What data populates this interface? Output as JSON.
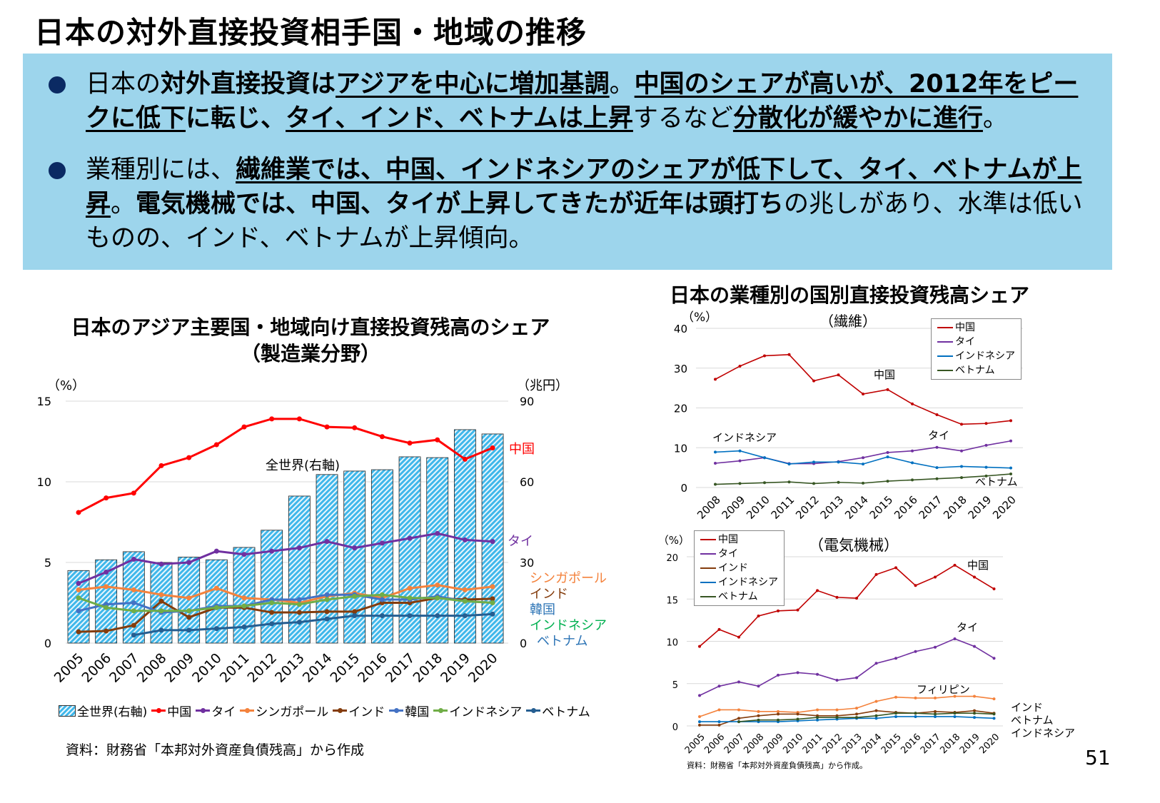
{
  "page_title": "日本の対外直接投資相手国・地域の推移",
  "bullets": [
    {
      "segments": [
        {
          "text": "日本の",
          "bold": false,
          "underline": false
        },
        {
          "text": "対外直接投資は",
          "bold": true,
          "underline": false
        },
        {
          "text": "アジアを中心に増加基調",
          "bold": true,
          "underline": true
        },
        {
          "text": "。",
          "bold": false,
          "underline": false
        },
        {
          "text": "中国のシェアが高いが、2012年をピークに低下",
          "bold": true,
          "underline": true
        },
        {
          "text": "に転じ、",
          "bold": true,
          "underline": false
        },
        {
          "text": "タイ、インド、ベトナムは上昇",
          "bold": true,
          "underline": true
        },
        {
          "text": "するなど",
          "bold": false,
          "underline": false
        },
        {
          "text": "分散化が緩やかに進行",
          "bold": true,
          "underline": true
        },
        {
          "text": "。",
          "bold": false,
          "underline": false
        }
      ]
    },
    {
      "segments": [
        {
          "text": "業種別には、",
          "bold": false,
          "underline": false
        },
        {
          "text": "繊維業では、中国、インドネシアのシェアが低下して、タイ、ベトナムが上昇",
          "bold": true,
          "underline": true
        },
        {
          "text": "。",
          "bold": false,
          "underline": false
        },
        {
          "text": "電気機械では、中国、タイが上昇してきたが近年は頭打ち",
          "bold": true,
          "underline": false
        },
        {
          "text": "の兆しがあり、水準は低いものの、インド、ベトナムが上昇傾向。",
          "bold": false,
          "underline": false
        }
      ]
    }
  ],
  "right_section_title": "日本の業種別の国別直接投資残高シェア",
  "source_left": "資料：財務省「本邦対外資産負債残高」から作成",
  "source_right": "資料：財務省「本邦対外資産負債残高」から作成。",
  "page_number": "51",
  "chart_data": [
    {
      "type": "bar+line",
      "title": "日本のアジア主要国・地域向け直接投資残高のシェア",
      "subtitle": "（製造業分野）",
      "ylabel": "（%）",
      "y2label": "（兆円）",
      "ylim": [
        0,
        15
      ],
      "y2lim": [
        0,
        90
      ],
      "yticks": [
        0,
        5,
        10,
        15
      ],
      "y2ticks": [
        0,
        30,
        60,
        90
      ],
      "grid": true,
      "legend": "bottom",
      "categories": [
        "2005",
        "2006",
        "2007",
        "2008",
        "2009",
        "2010",
        "2011",
        "2012",
        "2013",
        "2014",
        "2015",
        "2016",
        "2017",
        "2018",
        "2019",
        "2020"
      ],
      "bars": {
        "name": "全世界(右軸)",
        "label": "全世界(右軸)",
        "color": "#3fb7ea",
        "values": [
          27,
          31,
          34,
          30,
          32,
          31,
          35.6,
          42,
          54.7,
          62.7,
          64,
          64.5,
          69.3,
          69,
          79.4,
          77.8
        ]
      },
      "series": [
        {
          "name": "中国",
          "label": "中国",
          "color": "#ff0000",
          "values": [
            8.1,
            9.0,
            9.3,
            11.0,
            11.5,
            12.3,
            13.4,
            13.9,
            13.9,
            13.4,
            13.35,
            12.8,
            12.4,
            12.6,
            11.4,
            12.1
          ]
        },
        {
          "name": "タイ",
          "label": "タイ",
          "color": "#7030a0",
          "values": [
            3.7,
            4.4,
            5.2,
            4.9,
            5.0,
            5.7,
            5.5,
            5.7,
            5.9,
            6.3,
            5.9,
            6.2,
            6.5,
            6.8,
            6.4,
            6.3
          ]
        },
        {
          "name": "シンガポール",
          "label": "シンガポール",
          "color": "#f4823c",
          "values": [
            3.3,
            3.5,
            3.3,
            3.0,
            2.8,
            3.4,
            2.8,
            2.7,
            2.5,
            2.9,
            3.1,
            2.8,
            3.4,
            3.6,
            3.3,
            3.5
          ]
        },
        {
          "name": "インド",
          "label": "インド",
          "color": "#843c0c",
          "values": [
            0.7,
            0.75,
            1.1,
            2.6,
            1.6,
            2.2,
            2.2,
            1.9,
            1.9,
            1.95,
            1.95,
            2.5,
            2.5,
            2.8,
            2.7,
            2.75
          ]
        },
        {
          "name": "韓国",
          "label": "韓国",
          "color": "#4472c4",
          "values": [
            2.0,
            2.4,
            2.5,
            1.9,
            2.0,
            2.3,
            2.3,
            2.7,
            2.7,
            3.0,
            3.0,
            2.7,
            2.7,
            2.9,
            2.6,
            2.5
          ]
        },
        {
          "name": "インドネシア",
          "label": "インドネシア",
          "color": "#70ad47",
          "values": [
            2.8,
            2.2,
            2.0,
            2.0,
            2.0,
            2.2,
            2.3,
            2.5,
            2.4,
            2.7,
            2.9,
            3.0,
            2.8,
            2.8,
            2.6,
            2.5
          ]
        },
        {
          "name": "ベトナム",
          "label": "ベトナム",
          "color": "#255e91",
          "values": [
            null,
            null,
            0.5,
            0.8,
            0.8,
            0.9,
            1.0,
            1.2,
            1.3,
            1.5,
            1.7,
            1.7,
            1.7,
            1.7,
            1.7,
            1.8
          ]
        }
      ],
      "label_colors": {
        "中国": "#ff0000",
        "タイ": "#7030a0",
        "シンガポール": "#f4823c",
        "インド": "#843c0c",
        "韓国": "#2e75b6",
        "インドネシア": "#00b050",
        "ベトナム": "#2e75b6"
      }
    },
    {
      "type": "line",
      "title": "（繊維）",
      "ylabel": "（%）",
      "ylim": [
        0,
        40
      ],
      "yticks": [
        0,
        10,
        20,
        30,
        40
      ],
      "grid": true,
      "legend": "top-right",
      "categories": [
        "2008",
        "2009",
        "2010",
        "2011",
        "2012",
        "2013",
        "2014",
        "2015",
        "2016",
        "2017",
        "2018",
        "2019",
        "2020"
      ],
      "series": [
        {
          "name": "中国",
          "label": "中国",
          "color": "#c00000",
          "values": [
            27.2,
            30.5,
            33.1,
            33.4,
            26.8,
            28.3,
            23.5,
            24.6,
            21.0,
            18.3,
            15.9,
            16.1,
            16.8
          ]
        },
        {
          "name": "タイ",
          "label": "タイ",
          "color": "#7030a0",
          "values": [
            6.1,
            6.7,
            7.5,
            6.0,
            6.0,
            6.5,
            7.5,
            8.8,
            9.2,
            10.1,
            9.2,
            10.6,
            11.7
          ]
        },
        {
          "name": "インドネシア",
          "label": "インドネシア",
          "color": "#0070c0",
          "values": [
            8.9,
            9.2,
            7.5,
            5.9,
            6.4,
            6.4,
            5.9,
            7.7,
            6.2,
            5.0,
            5.3,
            5.1,
            4.9
          ]
        },
        {
          "name": "ベトナム",
          "label": "ベトナム",
          "color": "#375623",
          "values": [
            0.8,
            1.0,
            1.2,
            1.4,
            1.0,
            1.3,
            1.1,
            1.6,
            1.9,
            2.2,
            2.5,
            2.9,
            3.4
          ]
        }
      ]
    },
    {
      "type": "line",
      "title": "（電気機械）",
      "ylabel": "（%）",
      "ylim": [
        0,
        20
      ],
      "yticks": [
        0,
        5,
        10,
        15,
        20
      ],
      "grid": true,
      "legend": "top-left",
      "categories": [
        "2005",
        "2006",
        "2007",
        "2008",
        "2009",
        "2010",
        "2011",
        "2012",
        "2013",
        "2014",
        "2015",
        "2016",
        "2017",
        "2018",
        "2019",
        "2020"
      ],
      "series": [
        {
          "name": "中国",
          "label": "中国",
          "color": "#c00000",
          "values": [
            9.4,
            11.4,
            10.5,
            13.0,
            13.6,
            13.7,
            16.0,
            15.2,
            15.1,
            17.9,
            18.7,
            16.6,
            17.6,
            19.0,
            17.6,
            16.2
          ]
        },
        {
          "name": "タイ",
          "label": "タイ",
          "color": "#7030a0",
          "values": [
            3.6,
            4.7,
            5.2,
            4.7,
            6.0,
            6.3,
            6.1,
            5.4,
            5.7,
            7.4,
            8.0,
            8.8,
            9.3,
            10.3,
            9.4,
            8.0
          ]
        },
        {
          "name": "フィリピン",
          "label": "フィリピン",
          "color": "#f4823c",
          "values": [
            1.1,
            1.9,
            1.9,
            1.7,
            1.7,
            1.6,
            1.9,
            1.9,
            2.1,
            2.9,
            3.4,
            3.3,
            3.3,
            3.5,
            3.5,
            3.2
          ]
        },
        {
          "name": "インド",
          "label": "インド",
          "color": "#843c0c",
          "values": [
            0.1,
            0.1,
            0.9,
            1.2,
            1.4,
            1.4,
            1.2,
            1.2,
            1.4,
            1.8,
            1.6,
            1.5,
            1.7,
            1.6,
            1.8,
            1.5
          ]
        },
        {
          "name": "インドネシア",
          "label": "インドネシア",
          "color": "#0070c0",
          "values": [
            0.5,
            0.5,
            0.5,
            0.5,
            0.5,
            0.6,
            0.7,
            0.8,
            0.9,
            0.9,
            1.1,
            1.1,
            1.1,
            1.1,
            1.0,
            0.9
          ]
        },
        {
          "name": "ベトナム",
          "label": "ベトナム",
          "color": "#375623",
          "values": [
            null,
            null,
            0.5,
            0.7,
            0.7,
            0.8,
            1.0,
            1.0,
            1.0,
            1.2,
            1.5,
            1.5,
            1.4,
            1.5,
            1.5,
            1.4
          ]
        }
      ],
      "legend_series": [
        "中国",
        "タイ",
        "インド",
        "インドネシア",
        "ベトナム"
      ]
    }
  ]
}
